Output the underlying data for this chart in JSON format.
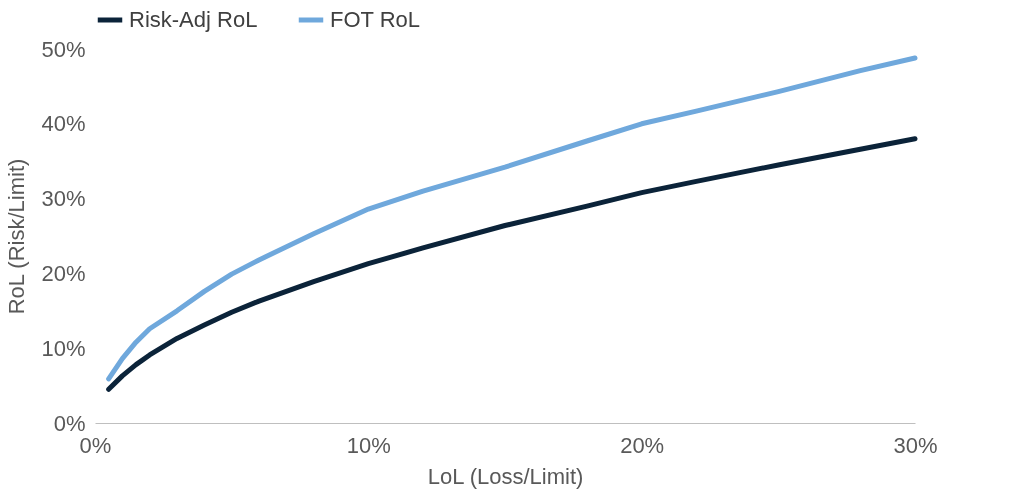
{
  "chart_data": {
    "type": "line",
    "xlabel": "LoL (Loss/Limit)",
    "ylabel": "RoL (Risk/Limit)",
    "x": [
      0.5,
      1,
      1.5,
      2,
      3,
      4,
      5,
      6,
      8,
      10,
      12,
      15,
      18,
      20,
      22,
      25,
      28,
      30
    ],
    "series": [
      {
        "name": "Risk-Adj RoL",
        "color": "#0b2339",
        "values": [
          4.5,
          6.3,
          7.8,
          9.1,
          11.3,
          13.1,
          14.8,
          16.3,
          18.9,
          21.3,
          23.4,
          26.4,
          29.0,
          30.8,
          32.3,
          34.5,
          36.6,
          38.0
        ]
      },
      {
        "name": "FOT RoL",
        "color": "#6fa8dc",
        "values": [
          5.9,
          8.6,
          10.8,
          12.6,
          15.0,
          17.6,
          19.9,
          21.8,
          25.3,
          28.6,
          31.0,
          34.2,
          37.7,
          40.0,
          41.7,
          44.3,
          47.1,
          48.8
        ]
      }
    ],
    "xlim": [
      0,
      30
    ],
    "xticks": [
      {
        "value": 0,
        "label": "0%"
      },
      {
        "value": 10,
        "label": "10%"
      },
      {
        "value": 20,
        "label": "20%"
      },
      {
        "value": 30,
        "label": "30%"
      }
    ],
    "ylim": [
      0,
      50
    ],
    "yticks": [
      {
        "value": 0,
        "label": "0%"
      },
      {
        "value": 10,
        "label": "10%"
      },
      {
        "value": 20,
        "label": "20%"
      },
      {
        "value": 30,
        "label": "30%"
      },
      {
        "value": 40,
        "label": "40%"
      },
      {
        "value": 50,
        "label": "50%"
      }
    ],
    "grid": false,
    "legend": "top",
    "marker": "none",
    "line_style": "solid"
  }
}
